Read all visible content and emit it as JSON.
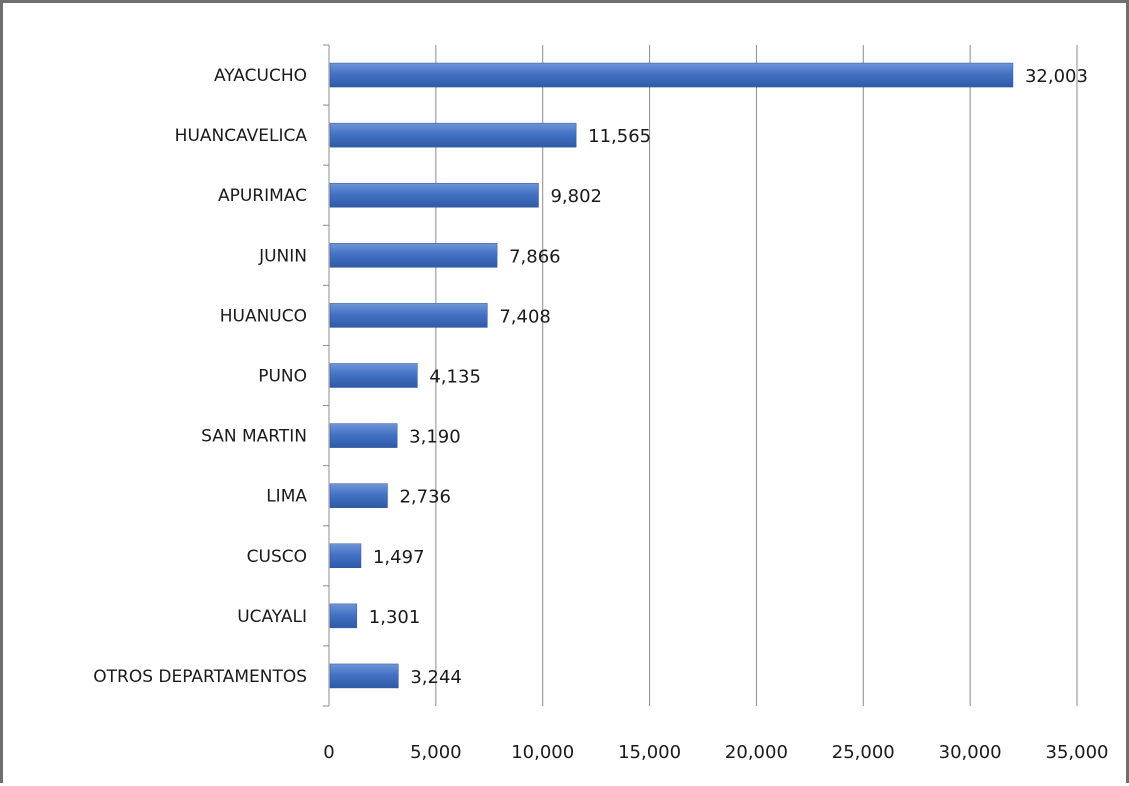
{
  "chart_data": {
    "type": "bar",
    "orientation": "horizontal",
    "categories": [
      "AYACUCHO",
      "HUANCAVELICA",
      "APURIMAC",
      "JUNIN",
      "HUANUCO",
      "PUNO",
      "SAN MARTIN",
      "LIMA",
      "CUSCO",
      "UCAYALI",
      "OTROS DEPARTAMENTOS"
    ],
    "values": [
      32003,
      11565,
      9802,
      7866,
      7408,
      4135,
      3190,
      2736,
      1497,
      1301,
      3244
    ],
    "value_labels": [
      "32,003",
      "11,565",
      "9,802",
      "7,866",
      "7,408",
      "4,135",
      "3,190",
      "2,736",
      "1,497",
      "1,301",
      "3,244"
    ],
    "xlim": [
      0,
      35000
    ],
    "x_ticks": [
      0,
      5000,
      10000,
      15000,
      20000,
      25000,
      30000,
      35000
    ],
    "x_tick_labels": [
      "0",
      "5,000",
      "10,000",
      "15,000",
      "20,000",
      "25,000",
      "30,000",
      "35,000"
    ],
    "grid": true,
    "legend": "none",
    "bar_color": "#4472c4"
  }
}
